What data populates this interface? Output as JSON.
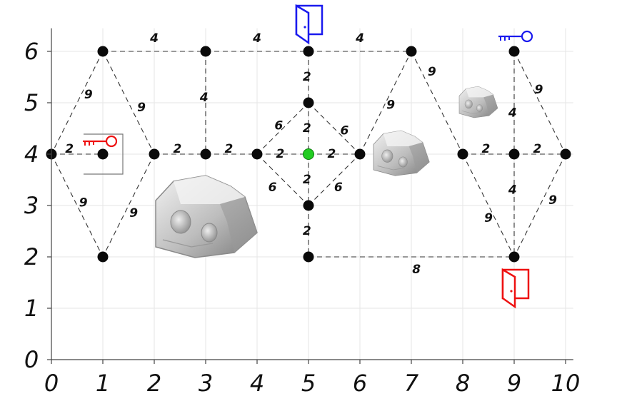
{
  "axes": {
    "x_ticks": [
      "0",
      "1",
      "2",
      "3",
      "4",
      "5",
      "6",
      "7",
      "8",
      "9",
      "10"
    ],
    "y_ticks": [
      "0",
      "1",
      "2",
      "3",
      "4",
      "5",
      "6"
    ]
  },
  "nodes": [
    {
      "id": "n1-6",
      "x": 1,
      "y": 6
    },
    {
      "id": "n3-6",
      "x": 3,
      "y": 6
    },
    {
      "id": "n5-6",
      "x": 5,
      "y": 6
    },
    {
      "id": "n7-6",
      "x": 7,
      "y": 6
    },
    {
      "id": "n9-6",
      "x": 9,
      "y": 6
    },
    {
      "id": "n5-5",
      "x": 5,
      "y": 5
    },
    {
      "id": "n0-4",
      "x": 0,
      "y": 4
    },
    {
      "id": "n1-4",
      "x": 1,
      "y": 4
    },
    {
      "id": "n2-4",
      "x": 2,
      "y": 4
    },
    {
      "id": "n3-4",
      "x": 3,
      "y": 4
    },
    {
      "id": "n4-4",
      "x": 4,
      "y": 4
    },
    {
      "id": "n6-4",
      "x": 6,
      "y": 4
    },
    {
      "id": "n8-4",
      "x": 8,
      "y": 4
    },
    {
      "id": "n9-4",
      "x": 9,
      "y": 4
    },
    {
      "id": "n10-4",
      "x": 10,
      "y": 4
    },
    {
      "id": "n5-3",
      "x": 5,
      "y": 3
    },
    {
      "id": "n1-2",
      "x": 1,
      "y": 2
    },
    {
      "id": "n5-2",
      "x": 5,
      "y": 2
    },
    {
      "id": "n9-2",
      "x": 9,
      "y": 2
    }
  ],
  "player": {
    "x": 5,
    "y": 4,
    "color": "#22cc22"
  },
  "edges": [
    {
      "a": [
        1,
        6
      ],
      "b": [
        3,
        6
      ],
      "w": "4",
      "lx": 2.0,
      "ly": 6.25
    },
    {
      "a": [
        3,
        6
      ],
      "b": [
        5,
        6
      ],
      "w": "4",
      "lx": 4.0,
      "ly": 6.25
    },
    {
      "a": [
        5,
        6
      ],
      "b": [
        7,
        6
      ],
      "w": "4",
      "lx": 6.0,
      "ly": 6.25
    },
    {
      "a": [
        1,
        6
      ],
      "b": [
        0,
        4
      ],
      "w": "9",
      "lx": 0.72,
      "ly": 5.15
    },
    {
      "a": [
        1,
        6
      ],
      "b": [
        2,
        4
      ],
      "w": "9",
      "lx": 1.75,
      "ly": 4.9
    },
    {
      "a": [
        0,
        4
      ],
      "b": [
        1,
        2
      ],
      "w": "9",
      "lx": 0.62,
      "ly": 3.05
    },
    {
      "a": [
        2,
        4
      ],
      "b": [
        1,
        2
      ],
      "w": "9",
      "lx": 1.6,
      "ly": 2.85
    },
    {
      "a": [
        0,
        4
      ],
      "b": [
        1,
        4
      ],
      "w": "2",
      "lx": 0.35,
      "ly": 4.1
    },
    {
      "a": [
        2,
        4
      ],
      "b": [
        3,
        4
      ],
      "w": "2",
      "lx": 2.45,
      "ly": 4.1
    },
    {
      "a": [
        3,
        4
      ],
      "b": [
        4,
        4
      ],
      "w": "2",
      "lx": 3.45,
      "ly": 4.1
    },
    {
      "a": [
        4,
        4
      ],
      "b": [
        5,
        4
      ],
      "w": "2",
      "lx": 4.45,
      "ly": 4.0
    },
    {
      "a": [
        5,
        4
      ],
      "b": [
        6,
        4
      ],
      "w": "2",
      "lx": 5.45,
      "ly": 4.0
    },
    {
      "a": [
        3,
        6
      ],
      "b": [
        3,
        4
      ],
      "w": "4",
      "lx": 2.97,
      "ly": 5.1
    },
    {
      "a": [
        5,
        6
      ],
      "b": [
        5,
        5
      ],
      "w": "2",
      "lx": 4.97,
      "ly": 5.5
    },
    {
      "a": [
        5,
        5
      ],
      "b": [
        5,
        4
      ],
      "w": "2",
      "lx": 4.97,
      "ly": 4.5
    },
    {
      "a": [
        5,
        4
      ],
      "b": [
        5,
        3
      ],
      "w": "2",
      "lx": 4.97,
      "ly": 3.5
    },
    {
      "a": [
        5,
        3
      ],
      "b": [
        5,
        2
      ],
      "w": "2",
      "lx": 4.97,
      "ly": 2.5
    },
    {
      "a": [
        4,
        4
      ],
      "b": [
        5,
        5
      ],
      "w": "6",
      "lx": 4.42,
      "ly": 4.55
    },
    {
      "a": [
        5,
        5
      ],
      "b": [
        6,
        4
      ],
      "w": "6",
      "lx": 5.7,
      "ly": 4.45
    },
    {
      "a": [
        4,
        4
      ],
      "b": [
        5,
        3
      ],
      "w": "6",
      "lx": 4.3,
      "ly": 3.35
    },
    {
      "a": [
        5,
        3
      ],
      "b": [
        6,
        4
      ],
      "w": "6",
      "lx": 5.58,
      "ly": 3.35
    },
    {
      "a": [
        6,
        4
      ],
      "b": [
        7,
        6
      ],
      "w": "9",
      "lx": 6.6,
      "ly": 4.95
    },
    {
      "a": [
        7,
        6
      ],
      "b": [
        8,
        4
      ],
      "w": "9",
      "lx": 7.4,
      "ly": 5.6
    },
    {
      "a": [
        8,
        4
      ],
      "b": [
        9,
        4
      ],
      "w": "2",
      "lx": 8.45,
      "ly": 4.1
    },
    {
      "a": [
        9,
        4
      ],
      "b": [
        10,
        4
      ],
      "w": "2",
      "lx": 9.45,
      "ly": 4.1
    },
    {
      "a": [
        9,
        6
      ],
      "b": [
        9,
        4
      ],
      "w": "4",
      "lx": 8.97,
      "ly": 4.8
    },
    {
      "a": [
        9,
        4
      ],
      "b": [
        9,
        2
      ],
      "w": "4",
      "lx": 8.97,
      "ly": 3.3
    },
    {
      "a": [
        9,
        6
      ],
      "b": [
        10,
        4
      ],
      "w": "9",
      "lx": 9.48,
      "ly": 5.25
    },
    {
      "a": [
        8,
        4
      ],
      "b": [
        9,
        2
      ],
      "w": "9",
      "lx": 8.5,
      "ly": 2.75
    },
    {
      "a": [
        10,
        4
      ],
      "b": [
        9,
        2
      ],
      "w": "9",
      "lx": 9.75,
      "ly": 3.1
    },
    {
      "a": [
        5,
        2
      ],
      "b": [
        9,
        2
      ],
      "w": "8",
      "lx": 7.1,
      "ly": 1.75
    }
  ],
  "items": {
    "door_blue": {
      "x": 5,
      "y": 6,
      "color": "#1a1aee"
    },
    "door_red": {
      "x": 9,
      "y": 2,
      "color": "#ee1111"
    },
    "key_blue": {
      "x": 9,
      "y": 6,
      "color": "#1a1aee"
    },
    "key_red": {
      "x": 1,
      "y": 4,
      "color": "#ee1111"
    }
  },
  "rocks": [
    {
      "name": "large",
      "x": 3,
      "y": 2.75
    },
    {
      "name": "medium",
      "x": 6.8,
      "y": 4
    },
    {
      "name": "small",
      "x": 8.3,
      "y": 5
    }
  ],
  "colors": {
    "node": "#0a0a0a",
    "edge": "#333333",
    "grid": "#e6e6e6"
  }
}
